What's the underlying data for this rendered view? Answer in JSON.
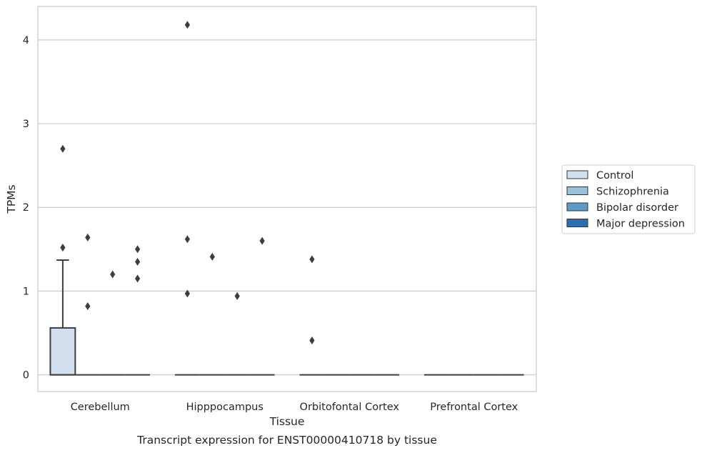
{
  "chart_data": {
    "type": "box",
    "title": "",
    "caption": "Transcript expression for ENST00000410718 by tissue",
    "xlabel": "Tissue",
    "ylabel": "TPMs",
    "ylim": [
      -0.2,
      4.4
    ],
    "yticks": [
      0,
      1,
      2,
      3,
      4
    ],
    "grid": "horizontal",
    "legend_position": "right",
    "categories": [
      "Cerebellum",
      "Hipppocampus",
      "Orbitofontal Cortex",
      "Prefrontal Cortex"
    ],
    "series": [
      {
        "name": "Control",
        "color": "#d1dfef",
        "boxes": [
          {
            "q1": 0,
            "median": 0,
            "q3": 0.56,
            "whisker_low": 0,
            "whisker_high": 1.37,
            "outliers": [
              2.7,
              1.52
            ]
          },
          {
            "q1": 0,
            "median": 0,
            "q3": 0,
            "whisker_low": 0,
            "whisker_high": 0,
            "outliers": [
              4.18,
              1.62,
              0.97
            ]
          },
          {
            "q1": 0,
            "median": 0,
            "q3": 0,
            "whisker_low": 0,
            "whisker_high": 0,
            "outliers": [
              1.38,
              0.41
            ]
          },
          {
            "q1": 0,
            "median": 0,
            "q3": 0,
            "whisker_low": 0,
            "whisker_high": 0,
            "outliers": []
          }
        ]
      },
      {
        "name": "Schizophrenia",
        "color": "#9ac1dc",
        "boxes": [
          {
            "q1": 0,
            "median": 0,
            "q3": 0,
            "whisker_low": 0,
            "whisker_high": 0,
            "outliers": [
              1.64,
              0.82
            ]
          },
          {
            "q1": 0,
            "median": 0,
            "q3": 0,
            "whisker_low": 0,
            "whisker_high": 0,
            "outliers": [
              1.41
            ]
          },
          {
            "q1": 0,
            "median": 0,
            "q3": 0,
            "whisker_low": 0,
            "whisker_high": 0,
            "outliers": []
          },
          {
            "q1": 0,
            "median": 0,
            "q3": 0,
            "whisker_low": 0,
            "whisker_high": 0,
            "outliers": []
          }
        ]
      },
      {
        "name": "Bipolar disorder",
        "color": "#5a9bc9",
        "boxes": [
          {
            "q1": 0,
            "median": 0,
            "q3": 0,
            "whisker_low": 0,
            "whisker_high": 0,
            "outliers": [
              1.2
            ]
          },
          {
            "q1": 0,
            "median": 0,
            "q3": 0,
            "whisker_low": 0,
            "whisker_high": 0,
            "outliers": [
              0.94
            ]
          },
          {
            "q1": 0,
            "median": 0,
            "q3": 0,
            "whisker_low": 0,
            "whisker_high": 0,
            "outliers": []
          },
          {
            "q1": 0,
            "median": 0,
            "q3": 0,
            "whisker_low": 0,
            "whisker_high": 0,
            "outliers": []
          }
        ]
      },
      {
        "name": "Major depression",
        "color": "#2a6fb0",
        "boxes": [
          {
            "q1": 0,
            "median": 0,
            "q3": 0,
            "whisker_low": 0,
            "whisker_high": 0,
            "outliers": [
              1.5,
              1.35,
              1.15
            ]
          },
          {
            "q1": 0,
            "median": 0,
            "q3": 0,
            "whisker_low": 0,
            "whisker_high": 0,
            "outliers": [
              1.6
            ]
          },
          {
            "q1": 0,
            "median": 0,
            "q3": 0,
            "whisker_low": 0,
            "whisker_high": 0,
            "outliers": []
          },
          {
            "q1": 0,
            "median": 0,
            "q3": 0,
            "whisker_low": 0,
            "whisker_high": 0,
            "outliers": []
          }
        ]
      }
    ]
  }
}
